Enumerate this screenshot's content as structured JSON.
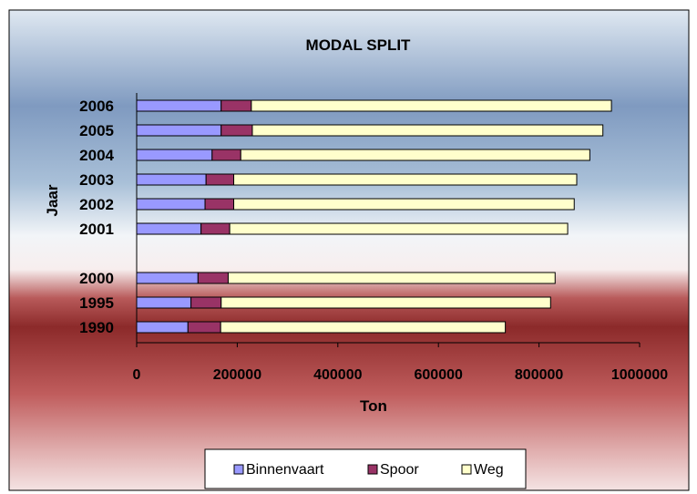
{
  "chart_data": {
    "type": "bar",
    "orientation": "horizontal",
    "stacked": true,
    "title": "MODAL SPLIT",
    "xlabel": "Ton",
    "ylabel": "Jaar",
    "xlim": [
      0,
      1000000
    ],
    "x_ticks": [
      "0",
      "200000",
      "400000",
      "600000",
      "800000",
      "1000000"
    ],
    "categories": [
      "2006",
      "2005",
      "2004",
      "2003",
      "2002",
      "2001",
      "2000",
      "1995",
      "1990"
    ],
    "series": [
      {
        "name": "Binnenvaart",
        "color": "#9999ff",
        "values": [
          168000,
          168000,
          150000,
          138000,
          136000,
          128000,
          122000,
          108000,
          102000
        ]
      },
      {
        "name": "Spoor",
        "color": "#993366",
        "values": [
          60000,
          62000,
          57000,
          55000,
          57000,
          57000,
          60000,
          60000,
          65000
        ]
      },
      {
        "name": "Weg",
        "color": "#ffffcc",
        "values": [
          716000,
          697000,
          694000,
          682000,
          677000,
          672000,
          650000,
          655000,
          566000
        ]
      }
    ],
    "grid": false,
    "legend_position": "bottom"
  }
}
